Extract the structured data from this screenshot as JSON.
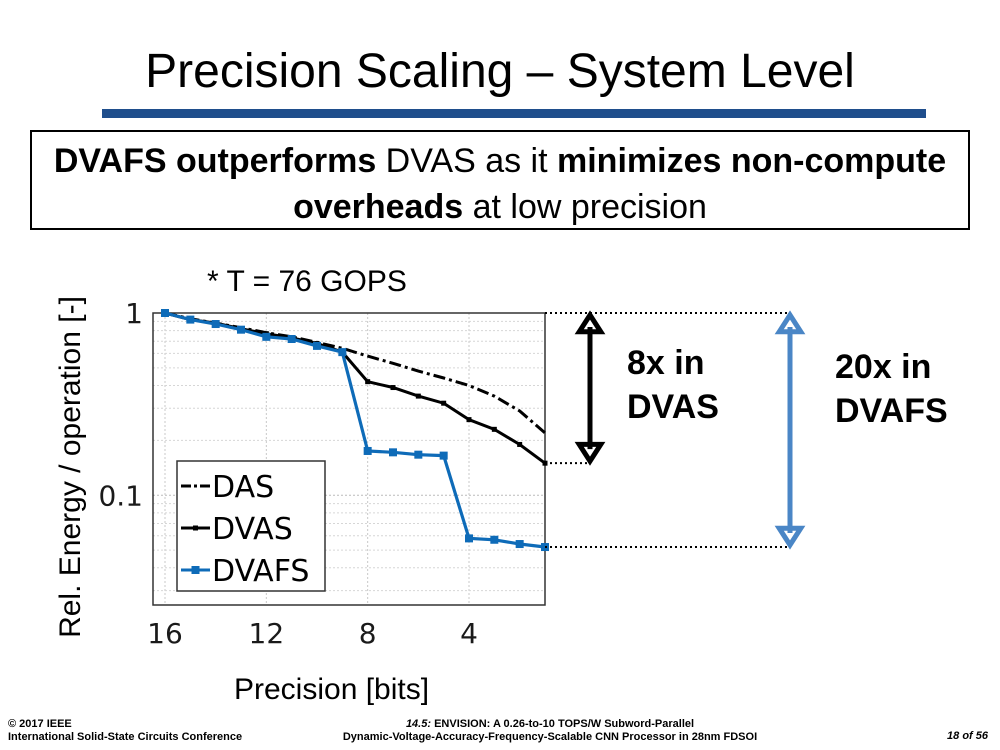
{
  "slide": {
    "title": "Precision Scaling – System Level",
    "callout": [
      {
        "text": "DVAFS outperforms",
        "bold": true
      },
      {
        "text": " DVAS as it ",
        "bold": false
      },
      {
        "text": "minimizes non-compute overheads",
        "bold": true
      },
      {
        "text": " at low precision",
        "bold": false
      }
    ],
    "note": "* T = 76 GOPS",
    "annotations": {
      "dvas": [
        "8x in",
        "DVAS"
      ],
      "dvafs": [
        "20x in",
        "DVAFS"
      ]
    },
    "colors": {
      "accent": "#1f4e8c",
      "dvafs": "#0e6bb8",
      "dvafs_arrow": "#4a86c6",
      "black": "#000000"
    },
    "footer": {
      "left": [
        "© 2017 IEEE",
        "International Solid-State Circuits Conference"
      ],
      "center_prefix": "14.5:",
      "center_line1": " ENVISION: A 0.26-to-10 TOPS/W Subword-Parallel",
      "center_line2": "Dynamic-Voltage-Accuracy-Frequency-Scalable CNN Processor in 28nm FDSOI",
      "page": "18 of 56"
    }
  },
  "chart_data": {
    "type": "line",
    "title": "",
    "xlabel": "Precision [bits]",
    "ylabel": "Rel. Energy / operation [-]",
    "yscale": "log",
    "ylim": [
      0.025,
      1
    ],
    "xlim": [
      16,
      1
    ],
    "x_reversed": true,
    "xticks": [
      16,
      12,
      8,
      4
    ],
    "yticks": [
      {
        "value": 1,
        "label": "1"
      },
      {
        "value": 0.1,
        "label": "0.1"
      }
    ],
    "grid": true,
    "legend": "bottom-left",
    "series": [
      {
        "name": "DAS",
        "style": "dash-dot",
        "color": "#000000",
        "markers": false,
        "x": [
          16,
          15,
          14,
          13,
          12,
          11,
          10,
          9,
          8,
          7,
          6,
          5,
          4,
          3,
          2,
          1
        ],
        "y": [
          1.0,
          0.93,
          0.88,
          0.83,
          0.78,
          0.74,
          0.69,
          0.64,
          0.58,
          0.53,
          0.48,
          0.44,
          0.4,
          0.35,
          0.29,
          0.22
        ]
      },
      {
        "name": "DVAS",
        "style": "solid",
        "color": "#000000",
        "markers": true,
        "x": [
          16,
          15,
          14,
          13,
          12,
          11,
          10,
          9,
          8,
          7,
          6,
          5,
          4,
          3,
          2,
          1
        ],
        "y": [
          1.0,
          0.92,
          0.88,
          0.82,
          0.77,
          0.73,
          0.68,
          0.61,
          0.42,
          0.39,
          0.35,
          0.32,
          0.26,
          0.23,
          0.19,
          0.15
        ]
      },
      {
        "name": "DVAFS",
        "style": "solid",
        "color": "#0e6bb8",
        "markers": true,
        "x": [
          16,
          15,
          14,
          13,
          12,
          11,
          10,
          9,
          8,
          7,
          6,
          5,
          4,
          3,
          2,
          1
        ],
        "y": [
          1.0,
          0.92,
          0.87,
          0.81,
          0.74,
          0.72,
          0.66,
          0.61,
          0.175,
          0.172,
          0.167,
          0.165,
          0.058,
          0.057,
          0.054,
          0.052
        ]
      }
    ]
  }
}
